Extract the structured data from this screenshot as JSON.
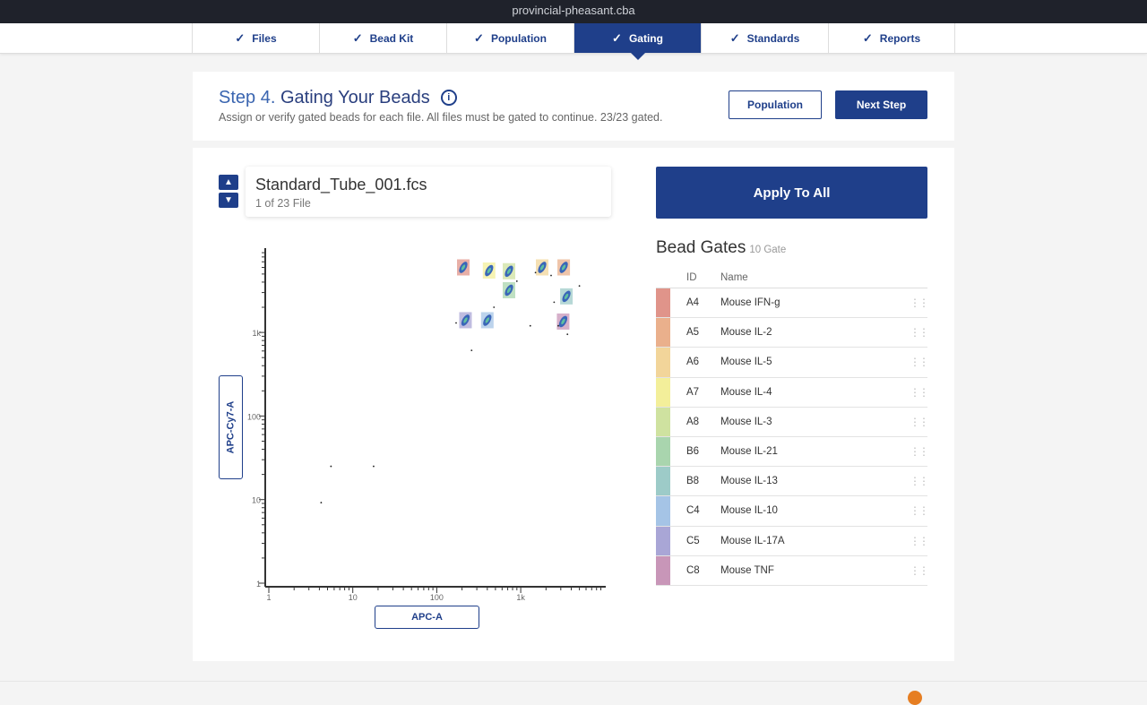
{
  "window_title": "provincial-pheasant.cba",
  "steps": [
    {
      "label": "Files",
      "check": "✓"
    },
    {
      "label": "Bead Kit",
      "check": "✓"
    },
    {
      "label": "Population",
      "check": "✓"
    },
    {
      "label": "Gating",
      "check": "✓",
      "active": true
    },
    {
      "label": "Standards",
      "check": "✓"
    },
    {
      "label": "Reports",
      "check": "✓"
    }
  ],
  "header": {
    "step_num": "Step 4.",
    "title": "Gating Your Beads",
    "info_icon": "i",
    "subtitle": "Assign or verify gated beads for each file. All files must be gated to continue. 23/23 gated.",
    "population_button": "Population",
    "next_button": "Next Step"
  },
  "file": {
    "name": "Standard_Tube_001.fcs",
    "count": "1 of 23 File",
    "up": "▲",
    "down": "▼"
  },
  "apply_all": "Apply To All",
  "bead_gates": {
    "title": "Bead Gates",
    "count": "10 Gate",
    "col_id": "ID",
    "col_name": "Name",
    "rows": [
      {
        "id": "A4",
        "name": "Mouse IFN-g",
        "color": "#e0948a"
      },
      {
        "id": "A5",
        "name": "Mouse IL-2",
        "color": "#eab08c"
      },
      {
        "id": "A6",
        "name": "Mouse IL-5",
        "color": "#f2d59a"
      },
      {
        "id": "A7",
        "name": "Mouse IL-4",
        "color": "#f3ef9a"
      },
      {
        "id": "A8",
        "name": "Mouse IL-3",
        "color": "#cfe2a0"
      },
      {
        "id": "B6",
        "name": "Mouse IL-21",
        "color": "#a9d5ae"
      },
      {
        "id": "B8",
        "name": "Mouse IL-13",
        "color": "#9dcbc8"
      },
      {
        "id": "C4",
        "name": "Mouse IL-10",
        "color": "#a5c4e6"
      },
      {
        "id": "C5",
        "name": "Mouse IL-17A",
        "color": "#a9a6d6"
      },
      {
        "id": "C8",
        "name": "Mouse TNF",
        "color": "#c896b8"
      }
    ]
  },
  "chart_data": {
    "type": "scatter",
    "xlabel": "APC-A",
    "ylabel": "APC-Cy7-A",
    "xscale": "log",
    "yscale": "log",
    "xlim": [
      1,
      10000
    ],
    "ylim": [
      1,
      10000
    ],
    "x_ticks": [
      "1",
      "10",
      "100",
      "1k"
    ],
    "y_ticks": [
      "1",
      "10",
      "100",
      "1k"
    ],
    "gates": [
      {
        "x": 207,
        "y": 6000,
        "color": "#e0948a"
      },
      {
        "x": 420,
        "y": 5500,
        "color": "#f3ef9a"
      },
      {
        "x": 725,
        "y": 5400,
        "color": "#cfe2a0"
      },
      {
        "x": 725,
        "y": 3200,
        "color": "#a9d5ae"
      },
      {
        "x": 1800,
        "y": 6000,
        "color": "#f2d59a"
      },
      {
        "x": 3250,
        "y": 6000,
        "color": "#eab08c"
      },
      {
        "x": 3500,
        "y": 2700,
        "color": "#9dcbc8"
      },
      {
        "x": 220,
        "y": 1400,
        "color": "#a9a6d6"
      },
      {
        "x": 400,
        "y": 1400,
        "color": "#a5c4e6"
      },
      {
        "x": 3200,
        "y": 1350,
        "color": "#c896b8"
      }
    ],
    "stray_points": [
      [
        4.2,
        9.2
      ],
      [
        5.5,
        25
      ],
      [
        17.7,
        25
      ],
      [
        260,
        610
      ],
      [
        170,
        1300
      ],
      [
        1300,
        1200
      ],
      [
        2800,
        1200
      ],
      [
        3600,
        950
      ],
      [
        900,
        4100
      ],
      [
        1500,
        5200
      ],
      [
        2300,
        4800
      ],
      [
        5000,
        3600
      ],
      [
        480,
        2000
      ],
      [
        2500,
        2300
      ]
    ]
  },
  "colors": {
    "accent": "#1f3f8a"
  }
}
